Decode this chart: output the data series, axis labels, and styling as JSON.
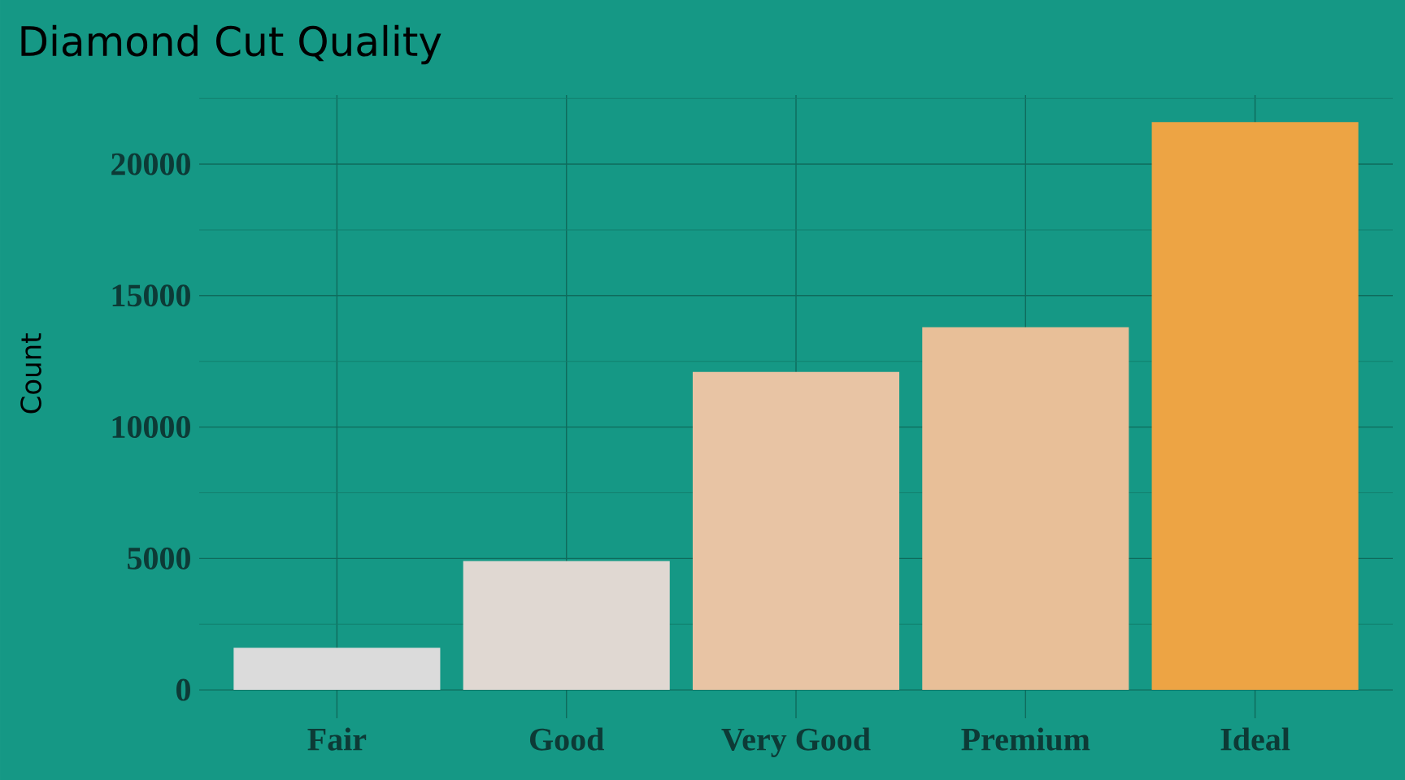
{
  "chart_data": {
    "type": "bar",
    "title": "Diamond Cut Quality",
    "ylabel": "Count",
    "categories": [
      "Fair",
      "Good",
      "Very Good",
      "Premium",
      "Ideal"
    ],
    "values": [
      1600,
      4900,
      12100,
      13800,
      21600
    ],
    "colors": [
      "#dbdbdb",
      "#e0d8d2",
      "#e8c4a4",
      "#e8bf98",
      "#eda444"
    ],
    "ylim": [
      -1078,
      22629
    ],
    "yticks": [
      0,
      {
        "value": 2500,
        "label": null
      },
      5000,
      {
        "value": 7500,
        "label": null
      },
      10000,
      {
        "value": 12500,
        "label": null
      },
      15000,
      {
        "value": 17500,
        "label": null
      },
      20000,
      {
        "value": 22500,
        "label": null
      }
    ],
    "grid": true
  }
}
